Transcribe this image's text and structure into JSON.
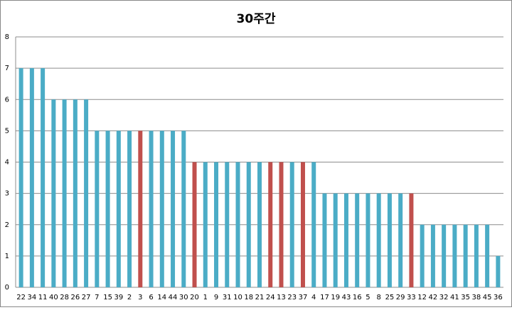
{
  "chart_data": {
    "type": "bar",
    "title": "30주간",
    "categories": [
      "22",
      "34",
      "11",
      "40",
      "28",
      "26",
      "27",
      "7",
      "15",
      "39",
      "2",
      "3",
      "6",
      "14",
      "44",
      "30",
      "20",
      "1",
      "9",
      "31",
      "10",
      "18",
      "21",
      "24",
      "13",
      "23",
      "37",
      "4",
      "17",
      "19",
      "43",
      "16",
      "5",
      "8",
      "25",
      "29",
      "33",
      "12",
      "42",
      "32",
      "41",
      "35",
      "38",
      "45",
      "36"
    ],
    "values": [
      7,
      7,
      7,
      6,
      6,
      6,
      6,
      5,
      5,
      5,
      5,
      5,
      5,
      5,
      5,
      5,
      4,
      4,
      4,
      4,
      4,
      4,
      4,
      4,
      4,
      4,
      4,
      4,
      3,
      3,
      3,
      3,
      3,
      3,
      3,
      3,
      3,
      2,
      2,
      2,
      2,
      2,
      2,
      2,
      1
    ],
    "colors": [
      "#4bacc6",
      "#4bacc6",
      "#4bacc6",
      "#4bacc6",
      "#4bacc6",
      "#4bacc6",
      "#4bacc6",
      "#4bacc6",
      "#4bacc6",
      "#4bacc6",
      "#4bacc6",
      "#c0504d",
      "#4bacc6",
      "#4bacc6",
      "#4bacc6",
      "#4bacc6",
      "#c0504d",
      "#4bacc6",
      "#4bacc6",
      "#4bacc6",
      "#4bacc6",
      "#4bacc6",
      "#4bacc6",
      "#c0504d",
      "#c0504d",
      "#4bacc6",
      "#c0504d",
      "#4bacc6",
      "#4bacc6",
      "#4bacc6",
      "#4bacc6",
      "#4bacc6",
      "#4bacc6",
      "#4bacc6",
      "#4bacc6",
      "#4bacc6",
      "#c0504d",
      "#4bacc6",
      "#4bacc6",
      "#4bacc6",
      "#4bacc6",
      "#4bacc6",
      "#4bacc6",
      "#4bacc6",
      "#4bacc6"
    ],
    "ylim": [
      0,
      8
    ],
    "yticks": [
      0,
      1,
      2,
      3,
      4,
      5,
      6,
      7,
      8
    ],
    "grid": true
  }
}
